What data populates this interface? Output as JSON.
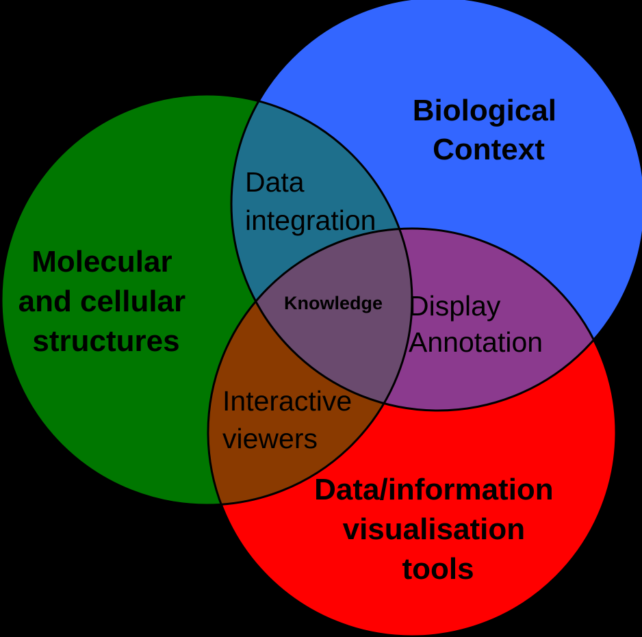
{
  "colors": {
    "background": "#000000",
    "molecular": "#007700",
    "biological": "#3366FF",
    "visualisation": "#FF0000",
    "mol_bio": "#1E6F8C",
    "bio_vis": "#8B3A8E",
    "mol_vis": "#8A3A00",
    "center": "#6A4A6E"
  },
  "sets": {
    "molecular": {
      "lines": [
        "Molecular",
        "and cellular",
        "structures"
      ]
    },
    "biological": {
      "lines": [
        "Biological",
        "Context"
      ]
    },
    "visualisation": {
      "lines": [
        "Data/information",
        "visualisation",
        "tools"
      ]
    }
  },
  "overlaps": {
    "mol_bio": {
      "lines": [
        "Data",
        "integration"
      ]
    },
    "bio_vis": {
      "lines": [
        "Display",
        "Annotation"
      ]
    },
    "mol_vis": {
      "lines": [
        "Interactive",
        "viewers"
      ]
    },
    "center": {
      "label": "Knowledge"
    }
  }
}
